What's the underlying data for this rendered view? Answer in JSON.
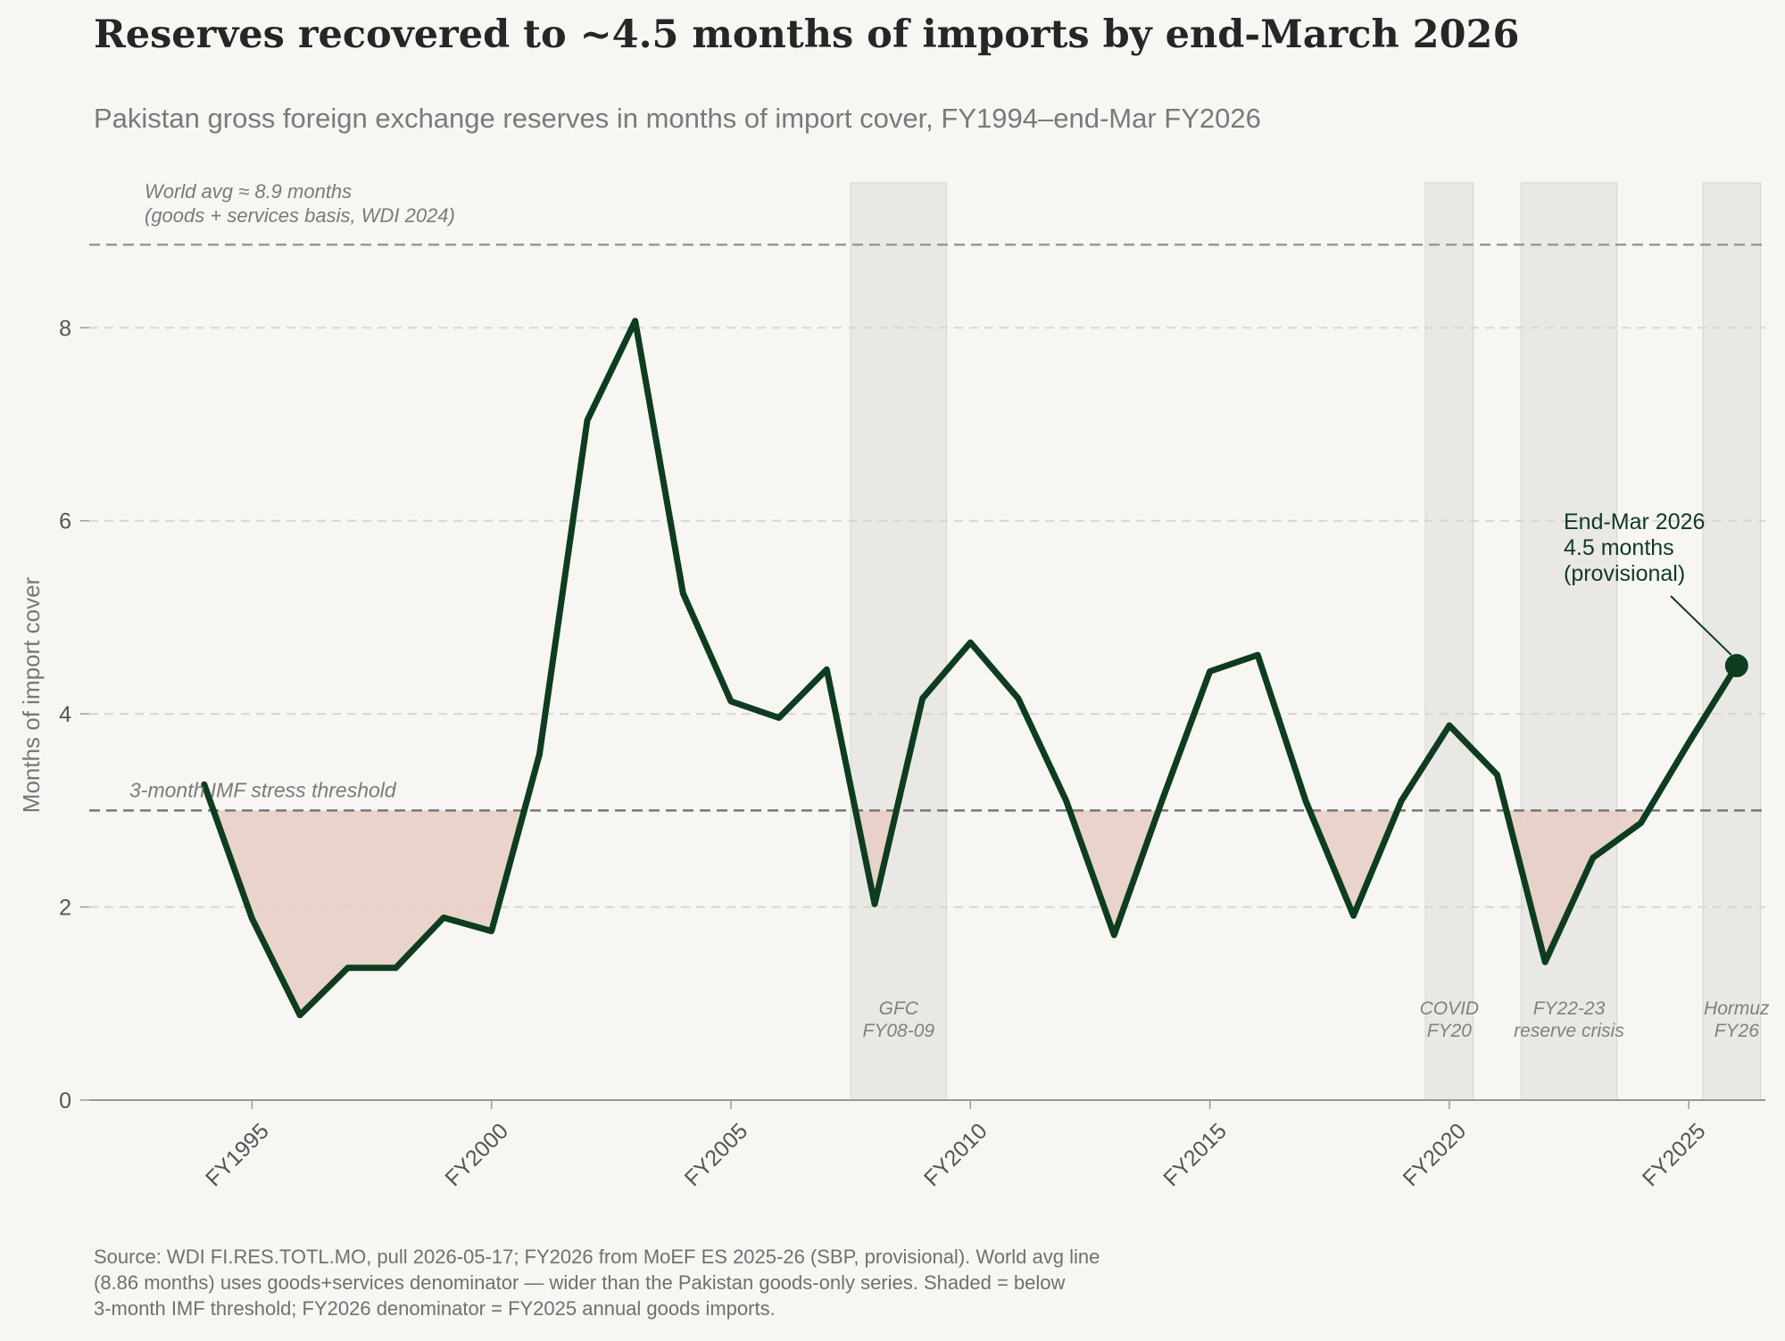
{
  "title": "Reserves recovered to ~4.5 months of imports by end-March 2026",
  "subtitle": "Pakistan gross foreign exchange reserves in months of import cover, FY1994–end-Mar FY2026",
  "source_lines": [
    "Source: WDI FI.RES.TOTL.MO, pull 2026-05-17; FY2026 from MoEF ES 2025-26 (SBP, provisional). World avg line",
    "(8.86 months) uses goods+services denominator — wider than the Pakistan goods-only series. Shaded = below",
    "3-month IMF threshold; FY2026 denominator = FY2025 annual goods imports."
  ],
  "chart_data": {
    "type": "line",
    "ylabel": "Months of import cover",
    "xlabel": "",
    "xlim": [
      1991.6,
      2026.6
    ],
    "ylim": [
      0,
      9.5
    ],
    "yticks": [
      0,
      2,
      4,
      6,
      8
    ],
    "xticks": [
      {
        "value": 1995,
        "label": "FY1995"
      },
      {
        "value": 2000,
        "label": "FY2000"
      },
      {
        "value": 2005,
        "label": "FY2005"
      },
      {
        "value": 2010,
        "label": "FY2010"
      },
      {
        "value": 2015,
        "label": "FY2015"
      },
      {
        "value": 2020,
        "label": "FY2020"
      },
      {
        "value": 2025,
        "label": "FY2025"
      }
    ],
    "grid": "y",
    "line_color": "#0b3d1e",
    "below_fill_color": "#e6ccc4",
    "series": [
      {
        "x": [
          1994,
          1995,
          1996,
          1997,
          1998,
          1999,
          2000,
          2001,
          2002,
          2003,
          2004,
          2005,
          2006,
          2007,
          2008,
          2009,
          2010,
          2011,
          2012,
          2013,
          2014,
          2015,
          2016,
          2017,
          2018,
          2019,
          2020,
          2021,
          2022,
          2023,
          2024,
          2025,
          2026
        ],
        "values": [
          3.27,
          1.88,
          0.88,
          1.37,
          1.37,
          1.89,
          1.75,
          3.58,
          7.04,
          8.07,
          5.25,
          4.13,
          3.96,
          4.46,
          2.03,
          4.16,
          4.74,
          4.16,
          3.1,
          1.71,
          3.1,
          4.44,
          4.61,
          3.1,
          1.91,
          3.1,
          3.88,
          3.37,
          1.43,
          2.51,
          2.87,
          3.7,
          4.5
        ]
      }
    ],
    "threshold": {
      "value": 3,
      "label": "3-month IMF stress threshold"
    },
    "world_avg": {
      "value": 8.86,
      "label_lines": [
        "World avg ≈ 8.9 months",
        "(goods + services basis, WDI 2024)"
      ]
    },
    "shaded_periods": [
      {
        "start": 2007.5,
        "end": 2009.5,
        "label_lines": [
          "GFC",
          "FY08-09"
        ],
        "label_x": 2008.5
      },
      {
        "start": 2019.5,
        "end": 2020.5,
        "label_lines": [
          "COVID",
          "FY20"
        ],
        "label_x": 2020
      },
      {
        "start": 2021.5,
        "end": 2023.5,
        "label_lines": [
          "FY22-23",
          "reserve crisis"
        ],
        "label_x": 2022.5
      },
      {
        "start": 2025.3,
        "end": 2026.5,
        "label_lines": [
          "Hormuz",
          "FY26"
        ],
        "label_x": 2026
      }
    ],
    "annotation": {
      "x": 2026,
      "y": 4.5,
      "lines": [
        "End-Mar 2026",
        "4.5 months",
        "(provisional)"
      ]
    }
  }
}
